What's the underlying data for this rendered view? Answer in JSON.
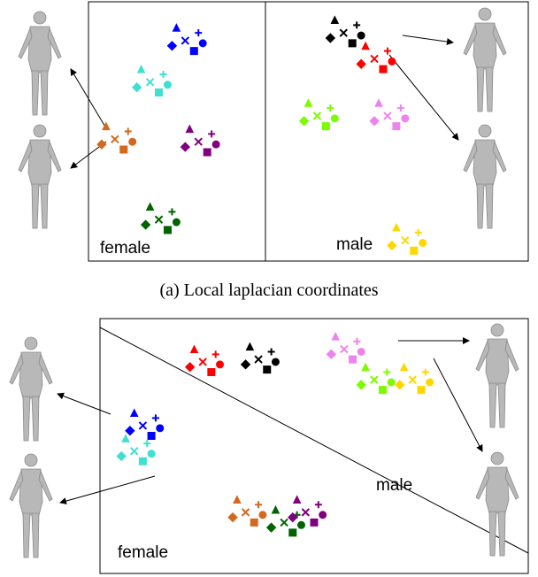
{
  "chart_data": [
    {
      "type": "scatter",
      "caption": "(a) Local laplacian coordinates",
      "annotations": [
        "female",
        "male"
      ],
      "xlim": [
        0,
        100
      ],
      "ylim": [
        0,
        100
      ],
      "markers": [
        "x",
        "plus",
        "triangle",
        "square",
        "diamond",
        "circle"
      ],
      "series": [
        {
          "color": "#0000ff",
          "x": [
            22,
            25,
            20,
            24,
            19,
            26
          ],
          "values": [
            85,
            88,
            90,
            81,
            83,
            84
          ]
        },
        {
          "color": "#40e0d0",
          "x": [
            14,
            17,
            12,
            16,
            11,
            18
          ],
          "values": [
            69,
            72,
            74,
            65,
            67,
            68
          ]
        },
        {
          "color": "#d2691e",
          "x": [
            6,
            9,
            4,
            8,
            3,
            10
          ],
          "values": [
            47,
            50,
            52,
            43,
            45,
            46
          ]
        },
        {
          "color": "#800080",
          "x": [
            25,
            28,
            23,
            27,
            22,
            29
          ],
          "values": [
            46,
            49,
            51,
            42,
            44,
            45
          ]
        },
        {
          "color": "#006400",
          "x": [
            16,
            19,
            14,
            18,
            13,
            20
          ],
          "values": [
            16,
            19,
            21,
            12,
            14,
            15
          ]
        },
        {
          "color": "#000000",
          "x": [
            58,
            61,
            56,
            60,
            55,
            62
          ],
          "values": [
            88,
            91,
            93,
            84,
            86,
            87
          ]
        },
        {
          "color": "#ff0000",
          "x": [
            65,
            68,
            63,
            67,
            62,
            69
          ],
          "values": [
            78,
            81,
            83,
            74,
            76,
            77
          ]
        },
        {
          "color": "#7cfc00",
          "x": [
            52,
            55,
            50,
            54,
            49,
            56
          ],
          "values": [
            56,
            59,
            61,
            52,
            54,
            55
          ]
        },
        {
          "color": "#ee82ee",
          "x": [
            68,
            71,
            66,
            70,
            65,
            72
          ],
          "values": [
            56,
            59,
            61,
            52,
            54,
            55
          ]
        },
        {
          "color": "#ffd700",
          "x": [
            72,
            75,
            70,
            74,
            69,
            76
          ],
          "values": [
            8,
            11,
            13,
            4,
            6,
            7
          ]
        }
      ]
    },
    {
      "type": "scatter",
      "annotations": [
        "female",
        "male"
      ],
      "xlim": [
        0,
        100
      ],
      "ylim": [
        0,
        100
      ],
      "markers": [
        "x",
        "plus",
        "triangle",
        "square",
        "diamond",
        "circle"
      ],
      "series": [
        {
          "color": "#ff0000",
          "x": [
            24,
            27,
            22,
            26,
            21,
            28
          ],
          "values": [
            83,
            86,
            88,
            79,
            81,
            82
          ]
        },
        {
          "color": "#000000",
          "x": [
            37,
            40,
            35,
            39,
            34,
            41
          ],
          "values": [
            84,
            87,
            89,
            80,
            82,
            83
          ]
        },
        {
          "color": "#ee82ee",
          "x": [
            57,
            60,
            55,
            59,
            54,
            61
          ],
          "values": [
            88,
            91,
            93,
            84,
            86,
            87
          ]
        },
        {
          "color": "#7cfc00",
          "x": [
            64,
            67,
            62,
            66,
            61,
            68
          ],
          "values": [
            76,
            79,
            81,
            72,
            74,
            75
          ]
        },
        {
          "color": "#ffd700",
          "x": [
            73,
            76,
            71,
            75,
            70,
            77
          ],
          "values": [
            76,
            79,
            81,
            72,
            74,
            75
          ]
        },
        {
          "color": "#0000ff",
          "x": [
            10,
            13,
            8,
            12,
            7,
            14
          ],
          "values": [
            58,
            61,
            63,
            54,
            56,
            57
          ]
        },
        {
          "color": "#40e0d0",
          "x": [
            8,
            11,
            6,
            10,
            5,
            12
          ],
          "values": [
            48,
            51,
            53,
            44,
            46,
            47
          ]
        },
        {
          "color": "#d2691e",
          "x": [
            34,
            37,
            32,
            36,
            31,
            38
          ],
          "values": [
            24,
            27,
            29,
            20,
            22,
            23
          ]
        },
        {
          "color": "#006400",
          "x": [
            43,
            46,
            41,
            45,
            40,
            47
          ],
          "values": [
            20,
            23,
            25,
            16,
            18,
            19
          ]
        },
        {
          "color": "#800080",
          "x": [
            48,
            51,
            46,
            50,
            45,
            52
          ],
          "values": [
            24,
            27,
            29,
            20,
            22,
            23
          ]
        }
      ]
    }
  ]
}
